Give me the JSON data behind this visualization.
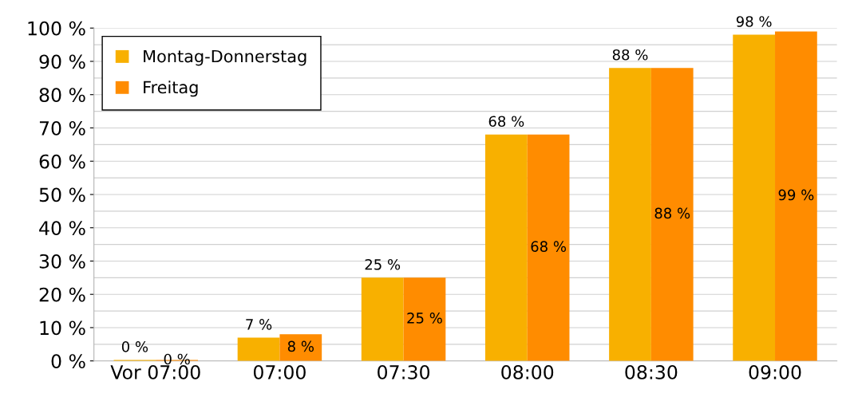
{
  "chart_data": {
    "type": "bar",
    "categories": [
      "Vor 07:00",
      "07:00",
      "07:30",
      "08:00",
      "08:30",
      "09:00"
    ],
    "series": [
      {
        "name": "Montag-Donnerstag",
        "color": "#f8b000",
        "values": [
          0.3,
          7,
          25,
          68,
          88,
          98
        ],
        "value_labels": [
          "0 %",
          "7 %",
          "25 %",
          "68 %",
          "88 %",
          "98 %"
        ]
      },
      {
        "name": "Freitag",
        "color": "#ff8c00",
        "values": [
          0.3,
          8,
          25,
          68,
          88,
          99
        ],
        "value_labels": [
          "0 %",
          "8 %",
          "25 %",
          "68 %",
          "88 %",
          "99 %"
        ]
      }
    ],
    "ylim": [
      0,
      100
    ],
    "yticks": [
      {
        "value": 0,
        "label": "0 %"
      },
      {
        "value": 5,
        "label": null
      },
      {
        "value": 10,
        "label": "10 %"
      },
      {
        "value": 15,
        "label": null
      },
      {
        "value": 20,
        "label": "20 %"
      },
      {
        "value": 25,
        "label": null
      },
      {
        "value": 30,
        "label": "30 %"
      },
      {
        "value": 35,
        "label": null
      },
      {
        "value": 40,
        "label": "40 %"
      },
      {
        "value": 45,
        "label": null
      },
      {
        "value": 50,
        "label": "50 %"
      },
      {
        "value": 55,
        "label": null
      },
      {
        "value": 60,
        "label": "60 %"
      },
      {
        "value": 65,
        "label": null
      },
      {
        "value": 70,
        "label": "70 %"
      },
      {
        "value": 75,
        "label": null
      },
      {
        "value": 80,
        "label": "80 %"
      },
      {
        "value": 85,
        "label": null
      },
      {
        "value": 90,
        "label": "90 %"
      },
      {
        "value": 95,
        "label": null
      },
      {
        "value": 100,
        "label": "100 %"
      }
    ],
    "grid": "y",
    "legend": "top left"
  }
}
